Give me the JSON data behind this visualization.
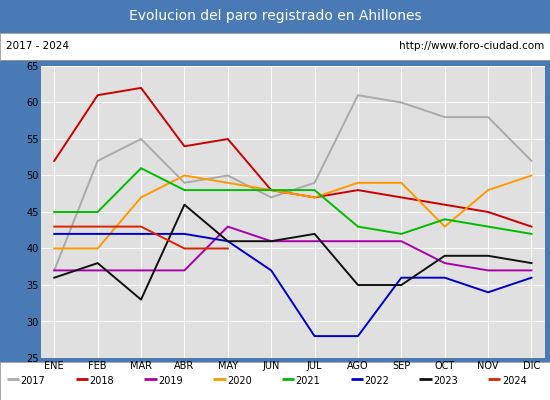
{
  "title": "Evolucion del paro registrado en Ahillones",
  "subtitle_left": "2017 - 2024",
  "subtitle_right": "http://www.foro-ciudad.com",
  "title_bg_color": "#5599dd",
  "title_text_color": "#ffffff",
  "subtitle_bg_color": "#ffffff",
  "subtitle_text_color": "#000000",
  "plot_bg_color": "#e0e0e0",
  "months": [
    "ENE",
    "FEB",
    "MAR",
    "ABR",
    "MAY",
    "JUN",
    "JUL",
    "AGO",
    "SEP",
    "OCT",
    "NOV",
    "DIC"
  ],
  "ylim": [
    25,
    65
  ],
  "yticks": [
    25,
    30,
    35,
    40,
    45,
    50,
    55,
    60,
    65
  ],
  "series": {
    "2017": {
      "color": "#aaaaaa",
      "values": [
        37,
        52,
        55,
        49,
        50,
        47,
        49,
        61,
        60,
        58,
        58,
        52
      ]
    },
    "2018": {
      "color": "#cc0000",
      "values": [
        52,
        61,
        62,
        54,
        55,
        48,
        47,
        48,
        47,
        46,
        45,
        43
      ]
    },
    "2019": {
      "color": "#aa00aa",
      "values": [
        37,
        37,
        37,
        37,
        43,
        41,
        41,
        41,
        41,
        38,
        37,
        37
      ]
    },
    "2020": {
      "color": "#ff9900",
      "values": [
        40,
        40,
        47,
        50,
        49,
        48,
        47,
        49,
        49,
        43,
        48,
        50
      ]
    },
    "2021": {
      "color": "#00bb00",
      "values": [
        45,
        45,
        51,
        48,
        48,
        48,
        48,
        43,
        42,
        44,
        43,
        42
      ]
    },
    "2022": {
      "color": "#0000cc",
      "values": [
        42,
        42,
        42,
        42,
        41,
        37,
        28,
        28,
        36,
        36,
        34,
        36
      ]
    },
    "2023": {
      "color": "#111111",
      "values": [
        36,
        38,
        33,
        46,
        41,
        41,
        42,
        35,
        35,
        39,
        39,
        38
      ]
    },
    "2024": {
      "color": "#dd2200",
      "values": [
        43,
        43,
        43,
        40,
        40,
        null,
        null,
        null,
        null,
        null,
        null,
        null
      ]
    }
  },
  "legend_order": [
    "2017",
    "2018",
    "2019",
    "2020",
    "2021",
    "2022",
    "2023",
    "2024"
  ],
  "title_fontsize": 10,
  "subtitle_fontsize": 7.5,
  "axis_fontsize": 7,
  "legend_fontsize": 7
}
